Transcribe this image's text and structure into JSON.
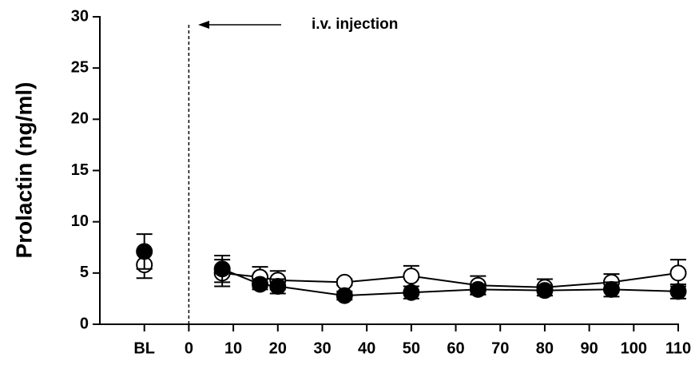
{
  "chart_data": {
    "type": "line",
    "y_label": "Prolactin (ng/ml)",
    "annotation": "i.v. injection",
    "injection_x": 0,
    "baseline_x": -10,
    "x": [
      7.5,
      16,
      20,
      35,
      50,
      65,
      80,
      95,
      110
    ],
    "series": [
      {
        "color": "#ffffff",
        "values": [
          5.0,
          4.6,
          4.3,
          4.1,
          4.7,
          3.8,
          3.6,
          4.1,
          5.0
        ],
        "errors": [
          1.3,
          1.0,
          0.9,
          0.3,
          1.0,
          0.9,
          0.8,
          0.8,
          1.3
        ],
        "baseline": 5.8,
        "baseline_error": 1.3
      },
      {
        "color": "#000000",
        "values": [
          5.4,
          3.9,
          3.7,
          2.8,
          3.1,
          3.4,
          3.3,
          3.4,
          3.2
        ],
        "errors": [
          1.3,
          0.5,
          0.7,
          0.4,
          0.6,
          0.5,
          0.5,
          0.7,
          0.7
        ],
        "baseline": 7.1,
        "baseline_error": 1.7
      }
    ],
    "xlim": [
      -20,
      110
    ],
    "xticks": [
      {
        "value": -10,
        "label": "BL"
      },
      0,
      10,
      20,
      30,
      40,
      50,
      60,
      70,
      80,
      90,
      100,
      110
    ],
    "ylim": [
      0,
      30
    ],
    "yticks": [
      0,
      5,
      10,
      15,
      20,
      25,
      30
    ]
  }
}
